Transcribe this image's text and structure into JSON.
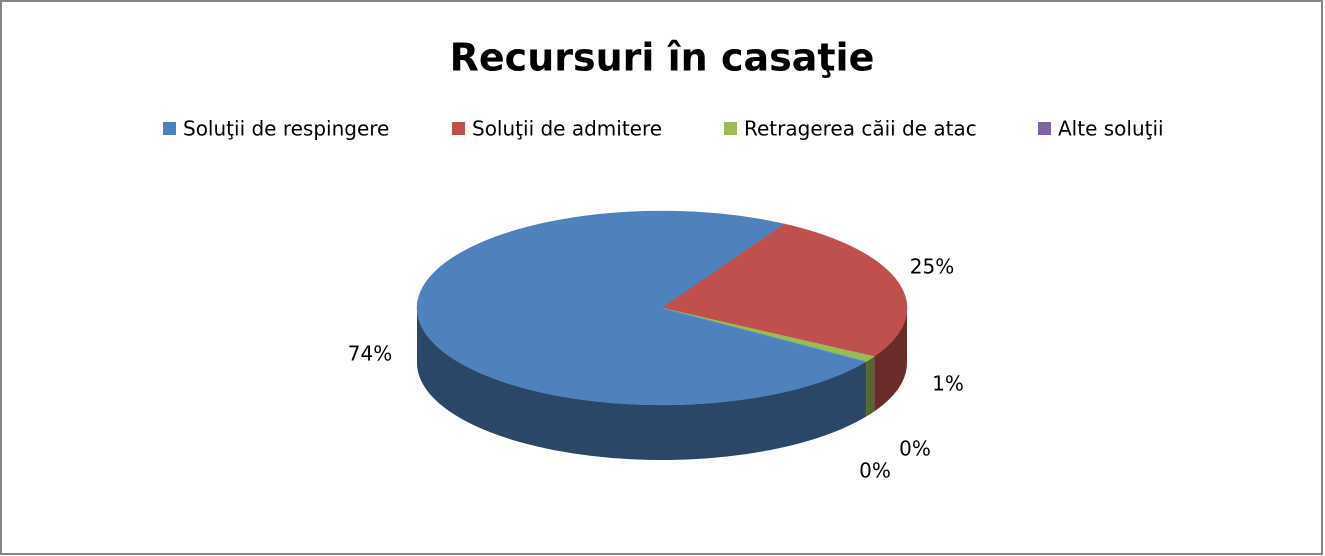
{
  "chart_data": {
    "type": "pie3d",
    "title": "Recursuri în casaţie",
    "categories": [
      "Soluţii de respingere",
      "Soluţii de admitere",
      "Retragerea căii de atac",
      "Alte soluţii",
      null
    ],
    "values": [
      74,
      25,
      1,
      0,
      0
    ],
    "value_labels": [
      "74%",
      "25%",
      "1%",
      "0%",
      "0%"
    ],
    "colors": [
      "#4f81bd",
      "#c0504d",
      "#9bbb59",
      "#8064a2",
      "#4bacc6"
    ],
    "legend": "top"
  }
}
